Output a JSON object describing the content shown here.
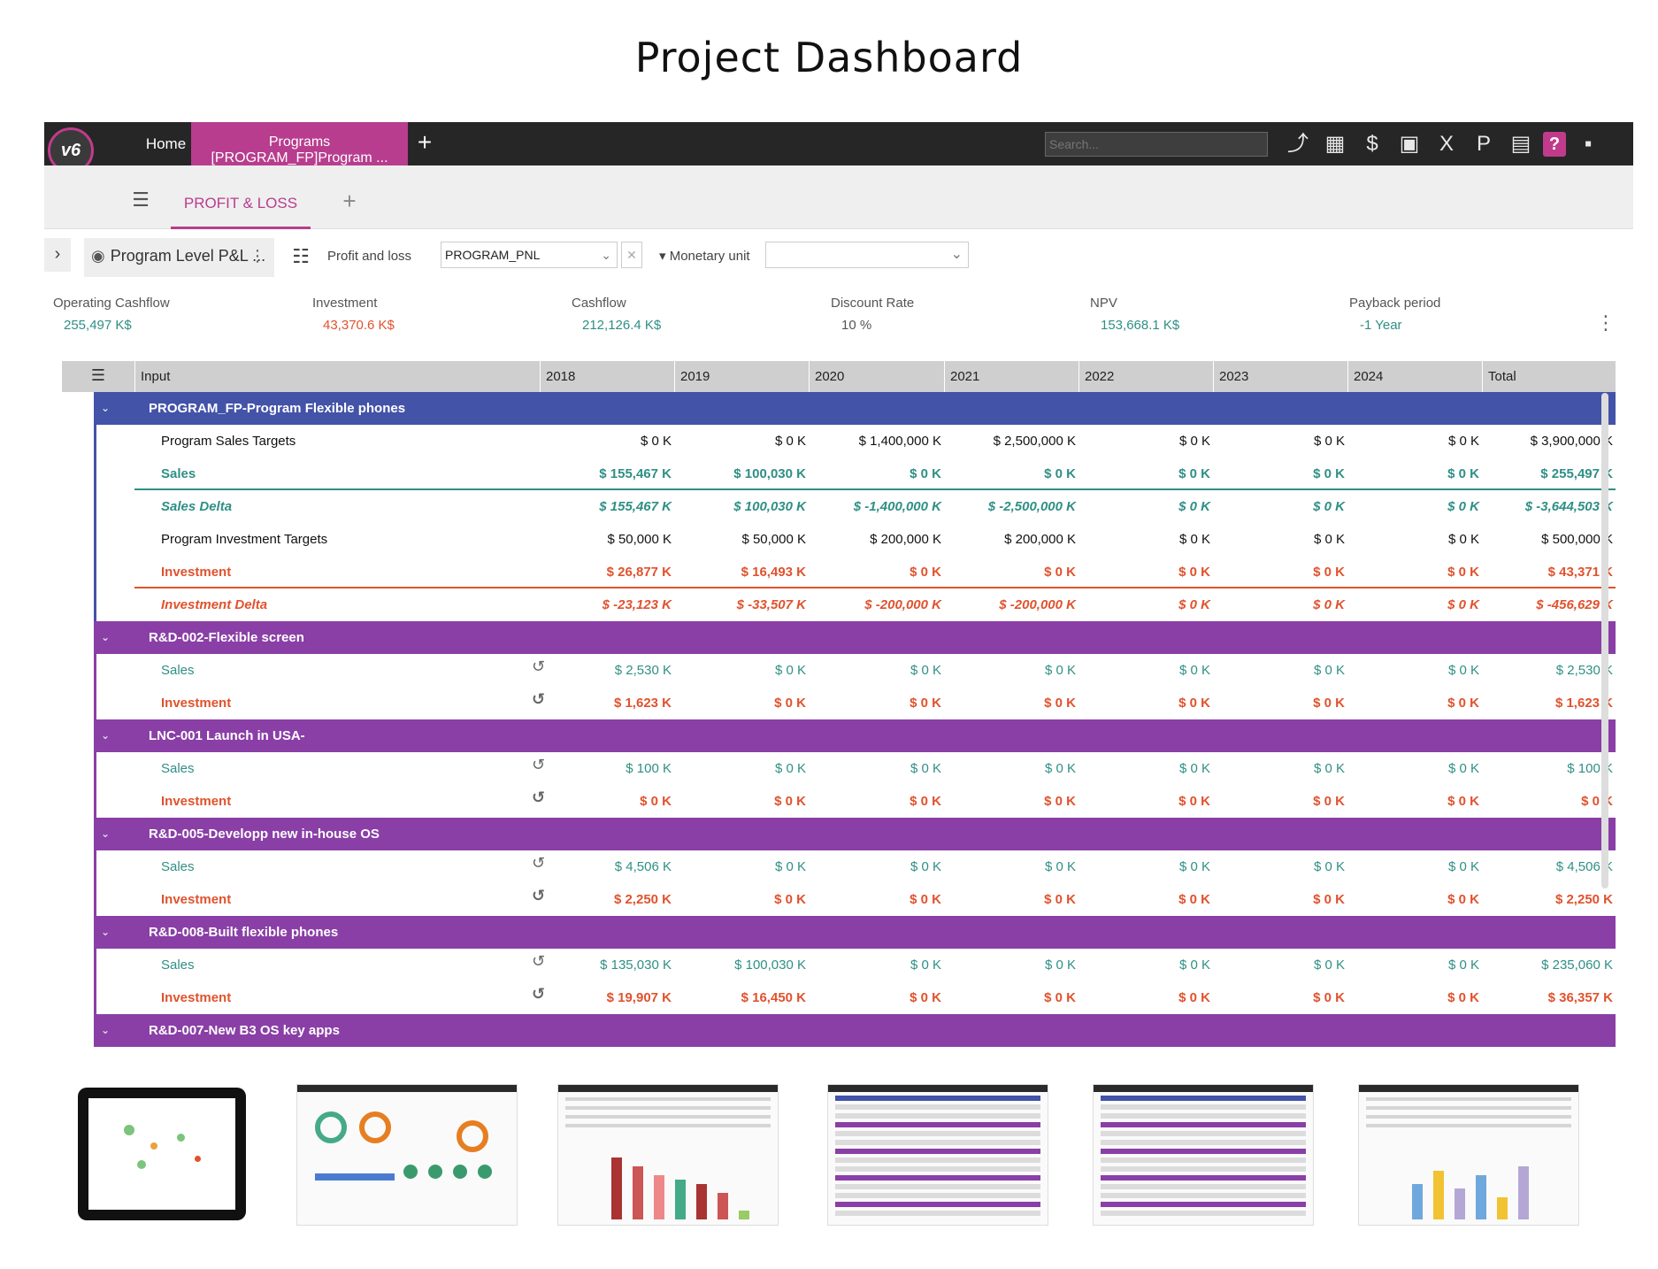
{
  "page_title": "Project Dashboard",
  "topbar": {
    "logo": "v6",
    "home_tab": "Home",
    "programs_tab_line1": "Programs",
    "programs_tab_line2": "[PROGRAM_FP]Program ...",
    "add_tab": "+",
    "search_placeholder": "Search...",
    "tools": [
      {
        "name": "share-icon",
        "glyph": "⤴"
      },
      {
        "name": "calendar-icon",
        "glyph": "▦"
      },
      {
        "name": "currency-icon",
        "glyph": "$"
      },
      {
        "name": "calendar-check-icon",
        "glyph": "▣"
      },
      {
        "name": "formula-icon",
        "glyph": "X"
      },
      {
        "name": "export-icon",
        "glyph": "P"
      },
      {
        "name": "pdf-icon",
        "glyph": "▤"
      },
      {
        "name": "help-icon",
        "glyph": "?"
      },
      {
        "name": "save-icon",
        "glyph": "▪"
      }
    ]
  },
  "tabbar": {
    "active_tab": "PROFIT & LOSS"
  },
  "filters": {
    "view_name": "Program Level P&L ...",
    "pl_label": "Profit and loss",
    "pnl_value": "PROGRAM_PNL",
    "monetary_unit_label": "Monetary unit",
    "monetary_unit_value": ""
  },
  "kpis": [
    {
      "label": "Operating Cashflow",
      "value": "255,497 K$",
      "color": "#2f8f85"
    },
    {
      "label": "Investment",
      "value": "43,370.6 K$",
      "color": "#e0522d"
    },
    {
      "label": "Cashflow",
      "value": "212,126.4 K$",
      "color": "#2f8f85"
    },
    {
      "label": "Discount Rate",
      "value": "10 %",
      "color": "#555555"
    },
    {
      "label": "NPV",
      "value": "153,668.1 K$",
      "color": "#2f8f85"
    },
    {
      "label": "Payback period",
      "value": "-1 Year",
      "color": "#2f8f85"
    }
  ],
  "table": {
    "headers": [
      "Input",
      "2018",
      "2019",
      "2020",
      "2021",
      "2022",
      "2023",
      "2024",
      "Total"
    ],
    "groups": [
      {
        "title": "PROGRAM_FP-Program Flexible phones",
        "color": "#4353a8",
        "rows": [
          {
            "name": "Program Sales Targets",
            "style": "plain",
            "color": "black",
            "values": [
              "$ 0 K",
              "$ 0 K",
              "$ 1,400,000 K",
              "$ 2,500,000 K",
              "$ 0 K",
              "$ 0 K",
              "$ 0 K",
              "$ 3,900,000 K"
            ]
          },
          {
            "name": "Sales",
            "style": "bold under-green",
            "color": "green",
            "values": [
              "$ 155,467 K",
              "$ 100,030 K",
              "$ 0 K",
              "$ 0 K",
              "$ 0 K",
              "$ 0 K",
              "$ 0 K",
              "$ 255,497 K"
            ]
          },
          {
            "name": "Sales Delta",
            "style": "italic",
            "color": "green",
            "values": [
              "$ 155,467 K",
              "$ 100,030 K",
              "$ -1,400,000 K",
              "$ -2,500,000 K",
              "$ 0 K",
              "$ 0 K",
              "$ 0 K",
              "$ -3,644,503 K"
            ]
          },
          {
            "name": "Program Investment Targets",
            "style": "plain",
            "color": "black",
            "values": [
              "$ 50,000 K",
              "$ 50,000 K",
              "$ 200,000 K",
              "$ 200,000 K",
              "$ 0 K",
              "$ 0 K",
              "$ 0 K",
              "$ 500,000 K"
            ]
          },
          {
            "name": "Investment",
            "style": "bold under-red",
            "color": "red",
            "values": [
              "$ 26,877 K",
              "$ 16,493 K",
              "$ 0 K",
              "$ 0 K",
              "$ 0 K",
              "$ 0 K",
              "$ 0 K",
              "$ 43,371 K"
            ]
          },
          {
            "name": "Investment Delta",
            "style": "italic",
            "color": "red",
            "values": [
              "$ -23,123 K",
              "$ -33,507 K",
              "$ -200,000 K",
              "$ -200,000 K",
              "$ 0 K",
              "$ 0 K",
              "$ 0 K",
              "$ -456,629 K"
            ]
          }
        ]
      },
      {
        "title": "R&D-002-Flexible screen",
        "color": "#8a3fa6",
        "rows": [
          {
            "name": "Sales",
            "style": "reset",
            "color": "green",
            "values": [
              "$ 2,530 K",
              "$ 0 K",
              "$ 0 K",
              "$ 0 K",
              "$ 0 K",
              "$ 0 K",
              "$ 0 K",
              "$ 2,530 K"
            ]
          },
          {
            "name": "Investment",
            "style": "bold reset",
            "color": "red",
            "values": [
              "$ 1,623 K",
              "$ 0 K",
              "$ 0 K",
              "$ 0 K",
              "$ 0 K",
              "$ 0 K",
              "$ 0 K",
              "$ 1,623 K"
            ]
          }
        ]
      },
      {
        "title": "LNC-001 Launch in USA-",
        "color": "#8a3fa6",
        "rows": [
          {
            "name": "Sales",
            "style": "reset",
            "color": "green",
            "values": [
              "$ 100 K",
              "$ 0 K",
              "$ 0 K",
              "$ 0 K",
              "$ 0 K",
              "$ 0 K",
              "$ 0 K",
              "$ 100 K"
            ]
          },
          {
            "name": "Investment",
            "style": "bold reset",
            "color": "red",
            "values": [
              "$ 0 K",
              "$ 0 K",
              "$ 0 K",
              "$ 0 K",
              "$ 0 K",
              "$ 0 K",
              "$ 0 K",
              "$ 0 K"
            ]
          }
        ]
      },
      {
        "title": "R&D-005-Developp new in-house OS",
        "color": "#8a3fa6",
        "rows": [
          {
            "name": "Sales",
            "style": "reset",
            "color": "green",
            "values": [
              "$ 4,506 K",
              "$ 0 K",
              "$ 0 K",
              "$ 0 K",
              "$ 0 K",
              "$ 0 K",
              "$ 0 K",
              "$ 4,506 K"
            ]
          },
          {
            "name": "Investment",
            "style": "bold reset",
            "color": "red",
            "values": [
              "$ 2,250 K",
              "$ 0 K",
              "$ 0 K",
              "$ 0 K",
              "$ 0 K",
              "$ 0 K",
              "$ 0 K",
              "$ 2,250 K"
            ]
          }
        ]
      },
      {
        "title": "R&D-008-Built flexible phones",
        "color": "#8a3fa6",
        "rows": [
          {
            "name": "Sales",
            "style": "reset",
            "color": "green",
            "values": [
              "$ 135,030 K",
              "$ 100,030 K",
              "$ 0 K",
              "$ 0 K",
              "$ 0 K",
              "$ 0 K",
              "$ 0 K",
              "$ 235,060 K"
            ]
          },
          {
            "name": "Investment",
            "style": "bold reset",
            "color": "red",
            "values": [
              "$ 19,907 K",
              "$ 16,450 K",
              "$ 0 K",
              "$ 0 K",
              "$ 0 K",
              "$ 0 K",
              "$ 0 K",
              "$ 36,357 K"
            ]
          }
        ]
      },
      {
        "title": "R&D-007-New B3 OS key apps",
        "color": "#8a3fa6",
        "rows": []
      }
    ]
  },
  "thumbnails": [
    {
      "name": "thumbnail-portfolio-tablet",
      "kind": "tablet"
    },
    {
      "name": "thumbnail-gauges-dashboard",
      "kind": "gauges"
    },
    {
      "name": "thumbnail-stacked-bars",
      "kind": "bars"
    },
    {
      "name": "thumbnail-pnl-table-1",
      "kind": "table"
    },
    {
      "name": "thumbnail-pnl-table-2",
      "kind": "table"
    },
    {
      "name": "thumbnail-column-chart",
      "kind": "columns"
    }
  ]
}
